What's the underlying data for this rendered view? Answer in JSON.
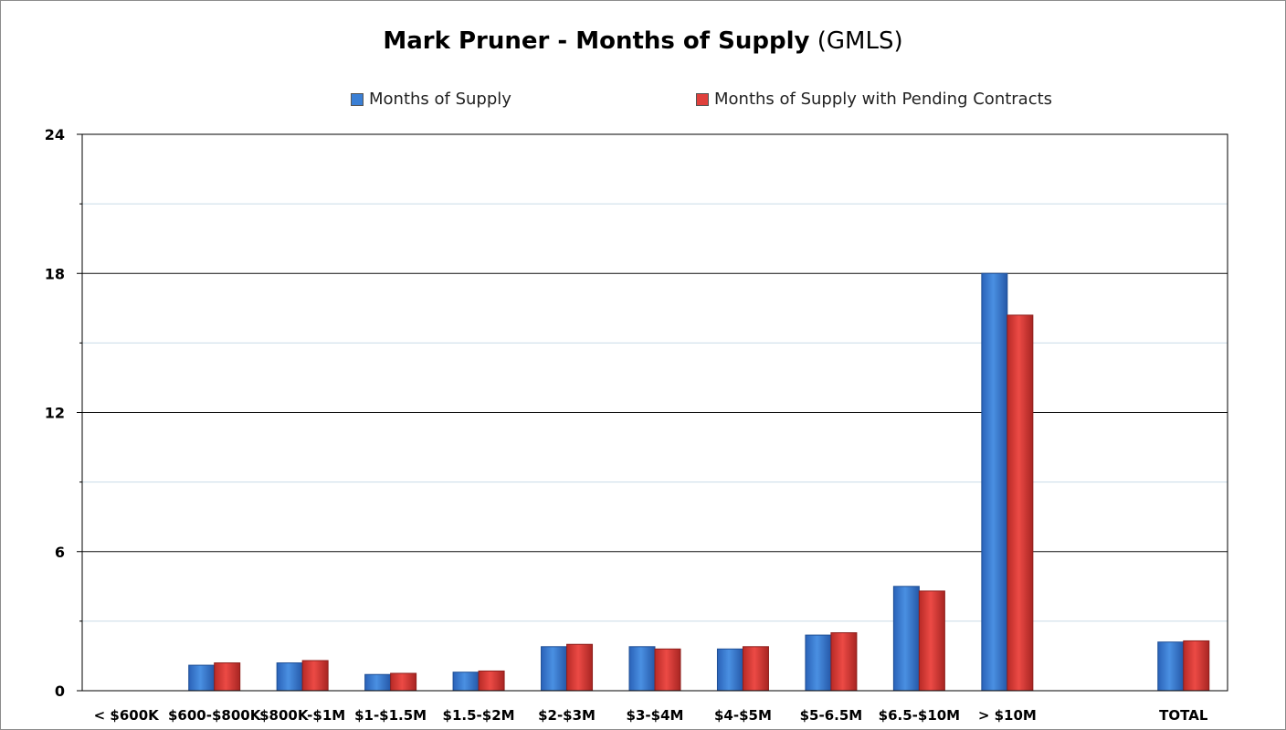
{
  "chart_data": {
    "type": "bar",
    "title": "Mark Pruner - Months of Supply",
    "subtitle": "(GMLS)",
    "xlabel": "",
    "ylabel": "",
    "ylim": [
      0,
      24
    ],
    "yticks": [
      0,
      6,
      12,
      18,
      24
    ],
    "grid": true,
    "legend_position": "top",
    "categories": [
      "< $600K",
      "$600-$800K",
      "$800K-$1M",
      "$1-$1.5M",
      "$1.5-$2M",
      "$2-$3M",
      "$3-$4M",
      "$4-$5M",
      "$5-6.5M",
      "$6.5-$10M",
      "> $10M",
      "",
      "TOTAL"
    ],
    "series": [
      {
        "name": "Months of Supply",
        "color": "#3a7fd5",
        "values": [
          0,
          1.1,
          1.2,
          0.7,
          0.8,
          1.9,
          1.9,
          1.8,
          2.4,
          4.5,
          18,
          null,
          2.1
        ]
      },
      {
        "name": "Months of Supply with Pending Contracts",
        "color": "#e0403c",
        "values": [
          0,
          1.2,
          1.3,
          0.75,
          0.85,
          2.0,
          1.8,
          1.9,
          2.5,
          4.3,
          16.2,
          null,
          2.15
        ]
      }
    ]
  }
}
